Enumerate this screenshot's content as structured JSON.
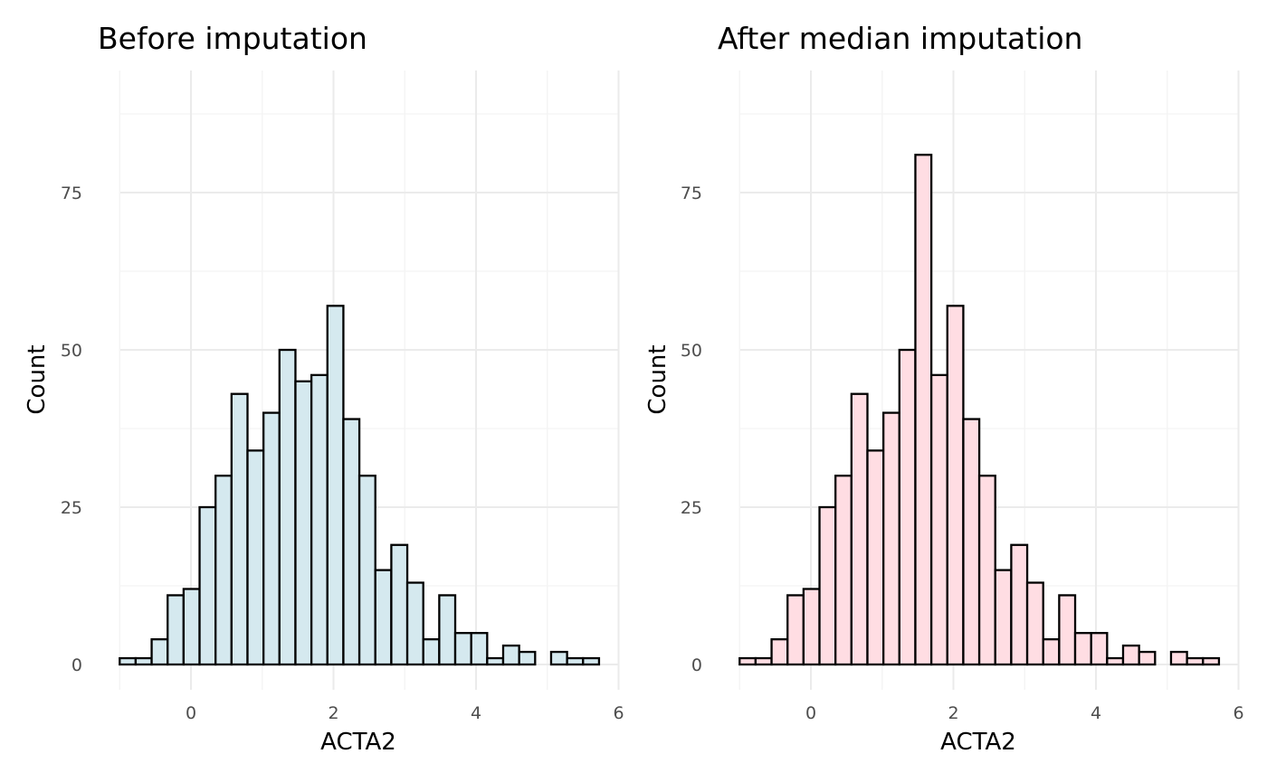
{
  "chart_data": [
    {
      "type": "bar",
      "title": "Before imputation",
      "xlabel": "ACTA2",
      "ylabel": "Count",
      "fill": "#d5e9ef",
      "xlim": [
        -1.35,
        6
      ],
      "ylim": [
        -3.5,
        91
      ],
      "x_ticks": [
        0,
        2,
        4,
        6
      ],
      "y_ticks": [
        0,
        25,
        50,
        75
      ],
      "grid": true,
      "bin_start": -1.0,
      "bin_width": 0.2242,
      "values": [
        1,
        1,
        4,
        11,
        12,
        25,
        30,
        43,
        34,
        40,
        50,
        45,
        46,
        57,
        39,
        30,
        15,
        19,
        13,
        4,
        11,
        5,
        5,
        1,
        3,
        2,
        0,
        2,
        1,
        1
      ]
    },
    {
      "type": "bar",
      "title": "After median imputation",
      "xlabel": "ACTA2",
      "ylabel": "Count",
      "fill": "#ffdde3",
      "xlim": [
        -1.35,
        6
      ],
      "ylim": [
        -3.5,
        91
      ],
      "x_ticks": [
        0,
        2,
        4,
        6
      ],
      "y_ticks": [
        0,
        25,
        50,
        75
      ],
      "grid": true,
      "bin_start": -1.0,
      "bin_width": 0.2242,
      "values": [
        1,
        1,
        4,
        11,
        12,
        25,
        30,
        43,
        34,
        40,
        50,
        81,
        46,
        57,
        39,
        30,
        15,
        19,
        13,
        4,
        11,
        5,
        5,
        1,
        3,
        2,
        0,
        2,
        1,
        1
      ]
    }
  ]
}
